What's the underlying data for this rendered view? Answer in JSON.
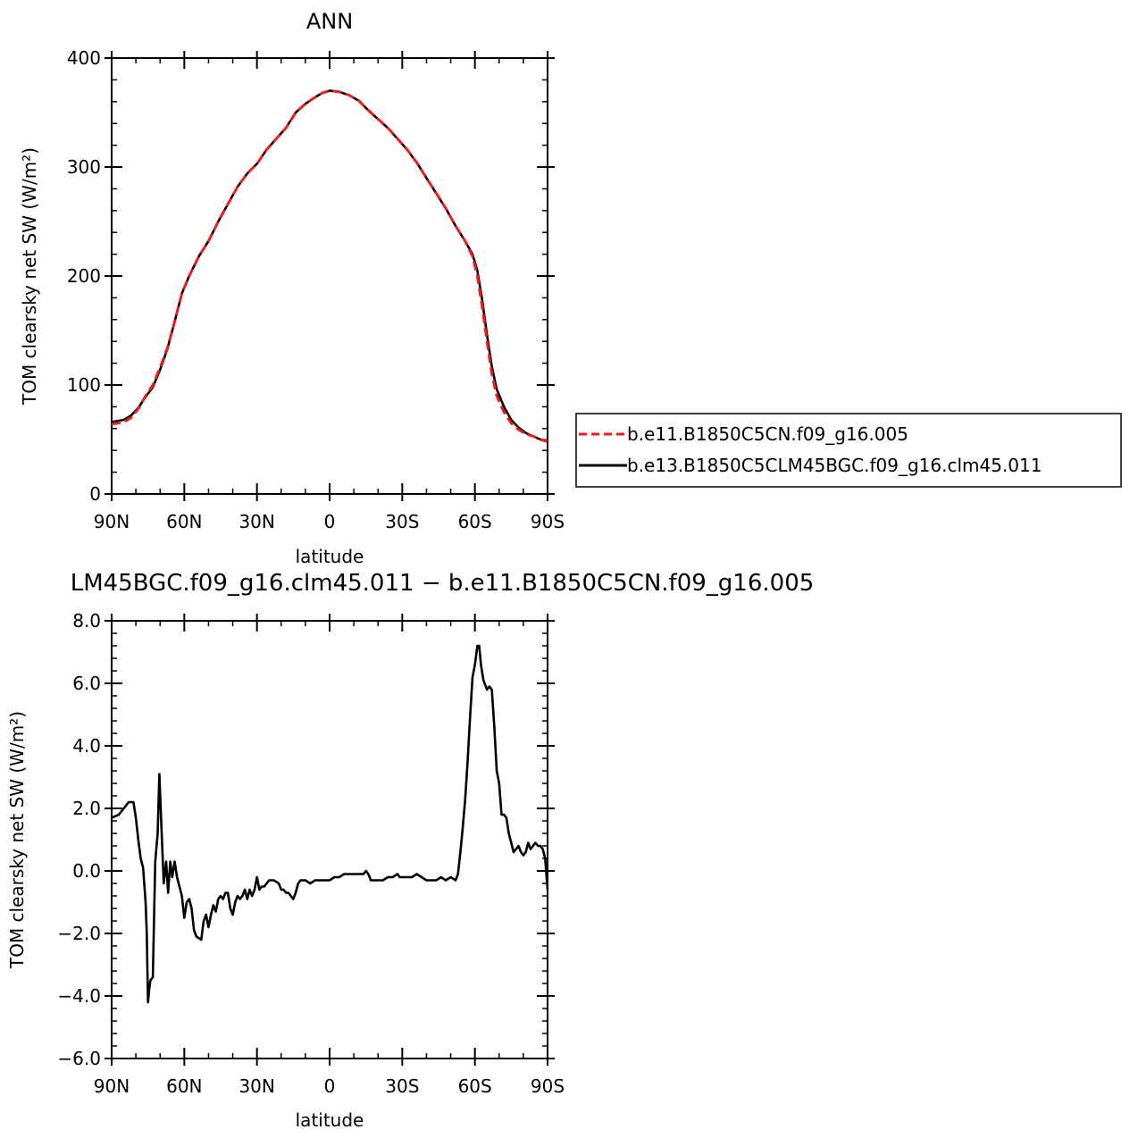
{
  "chart_data": [
    {
      "type": "line",
      "title": "ANN",
      "xlabel": "latitude",
      "ylabel": "TOM clearsky net SW (W/m²)",
      "xlim": [
        90,
        -90
      ],
      "ylim": [
        0,
        400
      ],
      "x_ticks": [
        90,
        60,
        30,
        0,
        -30,
        -60,
        -90
      ],
      "x_tick_labels": [
        "90N",
        "60N",
        "30N",
        "0",
        "30S",
        "60S",
        "90S"
      ],
      "y_ticks": [
        0,
        100,
        200,
        300,
        400
      ],
      "y_tick_labels": [
        "0",
        "100",
        "200",
        "300",
        "400"
      ],
      "legend_position": "right",
      "series": [
        {
          "name": "b.e11.B1850C5CN.f09_g16.005",
          "color": "#ee1c1c",
          "dash": "dashed",
          "points": [
            [
              90,
              64
            ],
            [
              85,
              66
            ],
            [
              82,
              70
            ],
            [
              79,
              78
            ],
            [
              76,
              90
            ],
            [
              73,
              100
            ],
            [
              70,
              116
            ],
            [
              67,
              134
            ],
            [
              64,
              158
            ],
            [
              61,
              184
            ],
            [
              58,
              200
            ],
            [
              54,
              218
            ],
            [
              50,
              232
            ],
            [
              46,
              250
            ],
            [
              42,
              266
            ],
            [
              38,
              282
            ],
            [
              34,
              294
            ],
            [
              30,
              303
            ],
            [
              26,
              316
            ],
            [
              22,
              326
            ],
            [
              18,
              336
            ],
            [
              14,
              350
            ],
            [
              10,
              358
            ],
            [
              6,
              364
            ],
            [
              3,
              368
            ],
            [
              0,
              370
            ],
            [
              -4,
              369
            ],
            [
              -8,
              366
            ],
            [
              -12,
              361
            ],
            [
              -16,
              352
            ],
            [
              -20,
              344
            ],
            [
              -24,
              336
            ],
            [
              -28,
              326
            ],
            [
              -32,
              316
            ],
            [
              -36,
              304
            ],
            [
              -40,
              290
            ],
            [
              -44,
              276
            ],
            [
              -48,
              262
            ],
            [
              -52,
              246
            ],
            [
              -56,
              232
            ],
            [
              -59,
              218
            ],
            [
              -61,
              200
            ],
            [
              -63,
              172
            ],
            [
              -65,
              140
            ],
            [
              -67,
              110
            ],
            [
              -69,
              90
            ],
            [
              -72,
              75
            ],
            [
              -75,
              65
            ],
            [
              -78,
              59
            ],
            [
              -81,
              55
            ],
            [
              -84,
              53
            ],
            [
              -87,
              50
            ],
            [
              -90,
              48
            ]
          ]
        },
        {
          "name": "b.e13.B1850C5CLM45BGC.f09_g16.clm45.011",
          "color": "#000000",
          "dash": "solid",
          "points": [
            [
              90,
              66
            ],
            [
              85,
              68
            ],
            [
              82,
              72
            ],
            [
              79,
              79
            ],
            [
              76,
              89
            ],
            [
              73,
              98
            ],
            [
              70,
              114
            ],
            [
              67,
              133
            ],
            [
              64,
              158
            ],
            [
              61,
              184
            ],
            [
              58,
              200
            ],
            [
              54,
              218
            ],
            [
              50,
              232
            ],
            [
              46,
              250
            ],
            [
              42,
              266
            ],
            [
              38,
              282
            ],
            [
              34,
              294
            ],
            [
              30,
              303
            ],
            [
              26,
              316
            ],
            [
              22,
              326
            ],
            [
              18,
              336
            ],
            [
              14,
              350
            ],
            [
              10,
              358
            ],
            [
              6,
              364
            ],
            [
              3,
              368
            ],
            [
              0,
              370
            ],
            [
              -4,
              369
            ],
            [
              -8,
              366
            ],
            [
              -12,
              361
            ],
            [
              -16,
              352
            ],
            [
              -20,
              344
            ],
            [
              -24,
              336
            ],
            [
              -28,
              326
            ],
            [
              -32,
              316
            ],
            [
              -36,
              304
            ],
            [
              -40,
              290
            ],
            [
              -44,
              276
            ],
            [
              -48,
              262
            ],
            [
              -52,
              246
            ],
            [
              -56,
              232
            ],
            [
              -59,
              220
            ],
            [
              -61,
              205
            ],
            [
              -63,
              178
            ],
            [
              -65,
              146
            ],
            [
              -67,
              117
            ],
            [
              -69,
              96
            ],
            [
              -72,
              80
            ],
            [
              -75,
              68
            ],
            [
              -78,
              61
            ],
            [
              -81,
              56
            ],
            [
              -84,
              53
            ],
            [
              -87,
              50
            ],
            [
              -90,
              49
            ]
          ]
        }
      ]
    },
    {
      "type": "line",
      "title": "LM45BGC.f09_g16.clm45.011 − b.e11.B1850C5CN.f09_g16.005",
      "xlabel": "latitude",
      "ylabel": "TOM clearsky net SW (W/m²)",
      "xlim": [
        90,
        -90
      ],
      "ylim": [
        -6,
        8
      ],
      "x_ticks": [
        90,
        60,
        30,
        0,
        -30,
        -60,
        -90
      ],
      "x_tick_labels": [
        "90N",
        "60N",
        "30N",
        "0",
        "30S",
        "60S",
        "90S"
      ],
      "y_ticks": [
        -6,
        -4,
        -2,
        0,
        2,
        4,
        6,
        8
      ],
      "y_tick_labels": [
        "−6.0",
        "−4.0",
        "−2.0",
        "0.0",
        "2.0",
        "4.0",
        "6.0",
        "8.0"
      ],
      "series": [
        {
          "color": "#000000",
          "points": [
            [
              90,
              1.7
            ],
            [
              87,
              1.8
            ],
            [
              85,
              2.0
            ],
            [
              83,
              2.2
            ],
            [
              81,
              2.2
            ],
            [
              80,
              1.7
            ],
            [
              79,
              1.0
            ],
            [
              78,
              0.4
            ],
            [
              77,
              0.1
            ],
            [
              76,
              -1.0
            ],
            [
              75.5,
              -2.0
            ],
            [
              75,
              -4.2
            ],
            [
              74.5,
              -3.8
            ],
            [
              74,
              -3.5
            ],
            [
              73,
              -3.4
            ],
            [
              72,
              0.3
            ],
            [
              71,
              1.2
            ],
            [
              70.3,
              3.1
            ],
            [
              69.5,
              1.5
            ],
            [
              68.5,
              -0.4
            ],
            [
              67.5,
              0.3
            ],
            [
              66.7,
              -0.7
            ],
            [
              65.8,
              0.3
            ],
            [
              65,
              -0.2
            ],
            [
              64,
              0.3
            ],
            [
              63,
              -0.2
            ],
            [
              61,
              -0.8
            ],
            [
              60,
              -1.5
            ],
            [
              59,
              -1.0
            ],
            [
              58,
              -0.9
            ],
            [
              57,
              -1.2
            ],
            [
              56,
              -1.9
            ],
            [
              55,
              -2.1
            ],
            [
              53,
              -2.2
            ],
            [
              52,
              -1.6
            ],
            [
              51,
              -1.4
            ],
            [
              50,
              -1.8
            ],
            [
              49,
              -1.4
            ],
            [
              48,
              -1.1
            ],
            [
              47,
              -1.3
            ],
            [
              46,
              -0.9
            ],
            [
              45,
              -0.8
            ],
            [
              44,
              -0.9
            ],
            [
              43,
              -0.7
            ],
            [
              42,
              -0.7
            ],
            [
              41,
              -1.2
            ],
            [
              40,
              -1.4
            ],
            [
              39,
              -1.0
            ],
            [
              38,
              -0.8
            ],
            [
              37,
              -0.9
            ],
            [
              36,
              -0.8
            ],
            [
              35,
              -0.6
            ],
            [
              34,
              -0.9
            ],
            [
              33,
              -0.6
            ],
            [
              32,
              -0.8
            ],
            [
              31,
              -0.6
            ],
            [
              30,
              -0.2
            ],
            [
              29,
              -0.6
            ],
            [
              28,
              -0.5
            ],
            [
              27,
              -0.5
            ],
            [
              25,
              -0.3
            ],
            [
              23,
              -0.3
            ],
            [
              21,
              -0.4
            ],
            [
              20,
              -0.6
            ],
            [
              19,
              -0.6
            ],
            [
              18,
              -0.7
            ],
            [
              17,
              -0.7
            ],
            [
              15,
              -0.9
            ],
            [
              14,
              -0.7
            ],
            [
              13,
              -0.4
            ],
            [
              12,
              -0.3
            ],
            [
              10,
              -0.3
            ],
            [
              8,
              -0.4
            ],
            [
              6,
              -0.3
            ],
            [
              4,
              -0.3
            ],
            [
              2,
              -0.3
            ],
            [
              0,
              -0.3
            ],
            [
              -2,
              -0.2
            ],
            [
              -4,
              -0.2
            ],
            [
              -6,
              -0.1
            ],
            [
              -8,
              -0.1
            ],
            [
              -10,
              -0.1
            ],
            [
              -12,
              -0.1
            ],
            [
              -14,
              -0.1
            ],
            [
              -15,
              0.0
            ],
            [
              -16,
              -0.1
            ],
            [
              -17,
              -0.3
            ],
            [
              -18,
              -0.3
            ],
            [
              -20,
              -0.3
            ],
            [
              -22,
              -0.3
            ],
            [
              -24,
              -0.2
            ],
            [
              -26,
              -0.2
            ],
            [
              -28,
              -0.1
            ],
            [
              -29,
              -0.2
            ],
            [
              -30,
              -0.2
            ],
            [
              -32,
              -0.2
            ],
            [
              -34,
              -0.2
            ],
            [
              -36,
              -0.1
            ],
            [
              -38,
              -0.2
            ],
            [
              -40,
              -0.3
            ],
            [
              -42,
              -0.3
            ],
            [
              -44,
              -0.3
            ],
            [
              -46,
              -0.2
            ],
            [
              -48,
              -0.3
            ],
            [
              -50,
              -0.2
            ],
            [
              -52,
              -0.3
            ],
            [
              -53,
              -0.1
            ],
            [
              -54,
              0.6
            ],
            [
              -55,
              1.4
            ],
            [
              -56,
              2.3
            ],
            [
              -57,
              3.5
            ],
            [
              -58,
              4.9
            ],
            [
              -59,
              6.2
            ],
            [
              -60,
              6.6
            ],
            [
              -61,
              7.2
            ],
            [
              -61.8,
              7.2
            ],
            [
              -62.5,
              6.6
            ],
            [
              -63.5,
              6.1
            ],
            [
              -65,
              5.8
            ],
            [
              -66,
              5.9
            ],
            [
              -67,
              5.8
            ],
            [
              -68,
              4.6
            ],
            [
              -69,
              3.2
            ],
            [
              -70,
              2.8
            ],
            [
              -71,
              1.8
            ],
            [
              -72,
              1.8
            ],
            [
              -73,
              1.7
            ],
            [
              -74,
              1.2
            ],
            [
              -75,
              0.9
            ],
            [
              -76,
              0.6
            ],
            [
              -77,
              0.7
            ],
            [
              -78,
              0.8
            ],
            [
              -79,
              0.6
            ],
            [
              -80,
              0.5
            ],
            [
              -81,
              0.6
            ],
            [
              -82,
              0.9
            ],
            [
              -83,
              0.7
            ],
            [
              -84,
              0.8
            ],
            [
              -85,
              0.9
            ],
            [
              -86,
              0.8
            ],
            [
              -87,
              0.8
            ],
            [
              -88,
              0.7
            ],
            [
              -89,
              0.4
            ],
            [
              -90,
              -0.6
            ]
          ]
        }
      ]
    }
  ]
}
